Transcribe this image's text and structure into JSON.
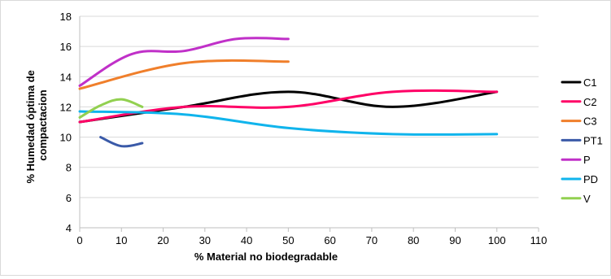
{
  "chart_data": {
    "type": "line",
    "title": "",
    "xlabel": "% Material no biodegradable",
    "ylabel": [
      "% Humedad óptima de",
      "compactacion"
    ],
    "xlim": [
      0,
      110
    ],
    "ylim": [
      4,
      18
    ],
    "xticks": [
      0,
      10,
      20,
      30,
      40,
      50,
      60,
      70,
      80,
      90,
      100,
      110
    ],
    "yticks": [
      4,
      6,
      8,
      10,
      12,
      14,
      16,
      18
    ],
    "grid": "horizontal",
    "legend": "right",
    "series": [
      {
        "name": "C1",
        "color": "#000000",
        "x": [
          0,
          25,
          50,
          75,
          100
        ],
        "y": [
          11.0,
          12.0,
          13.0,
          12.0,
          13.0
        ]
      },
      {
        "name": "C2",
        "color": "#ff0066",
        "x": [
          0,
          25,
          50,
          75,
          100
        ],
        "y": [
          11.0,
          12.0,
          12.0,
          13.0,
          13.0
        ]
      },
      {
        "name": "C3",
        "color": "#f07f2b",
        "x": [
          0,
          25,
          50
        ],
        "y": [
          13.2,
          14.9,
          15.0
        ]
      },
      {
        "name": "PT1",
        "color": "#3a5aa8",
        "x": [
          5,
          10,
          15
        ],
        "y": [
          10.0,
          9.4,
          9.6
        ]
      },
      {
        "name": "P",
        "color": "#c030c8",
        "x": [
          0,
          12.5,
          25,
          37.5,
          50
        ],
        "y": [
          13.4,
          15.5,
          15.7,
          16.5,
          16.5
        ]
      },
      {
        "name": "PD",
        "color": "#10b4ec",
        "x": [
          0,
          25,
          50,
          75,
          100
        ],
        "y": [
          11.7,
          11.5,
          10.6,
          10.2,
          10.2
        ]
      },
      {
        "name": "V",
        "color": "#92d050",
        "x": [
          0,
          5,
          10,
          15
        ],
        "y": [
          11.3,
          12.1,
          12.5,
          12.0
        ]
      }
    ]
  }
}
